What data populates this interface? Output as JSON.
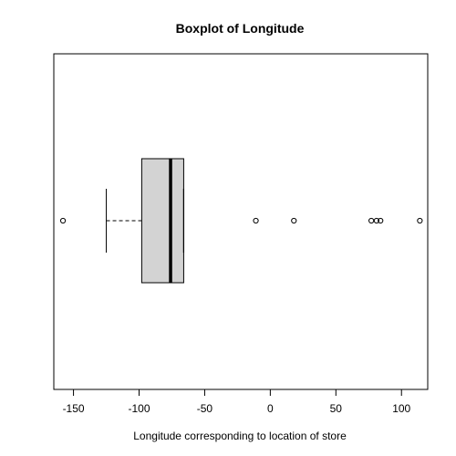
{
  "chart_data": {
    "type": "boxplot",
    "orientation": "horizontal",
    "title": "Boxplot of Longitude",
    "xlabel": "Longitude corresponding to location of store",
    "ylabel": "",
    "xlim": [
      -165,
      120
    ],
    "x_ticks": [
      -150,
      -100,
      -50,
      0,
      50,
      100
    ],
    "x_tick_labels": [
      "-150",
      "-100",
      "-50",
      "0",
      "50",
      "100"
    ],
    "grid": false,
    "box": {
      "whisker_low": -125,
      "q1": -98,
      "median": -76,
      "q3": -66,
      "whisker_high": -66,
      "fill": "#d3d3d3"
    },
    "outliers": [
      -158,
      -11,
      18,
      77,
      81,
      84,
      114
    ]
  }
}
